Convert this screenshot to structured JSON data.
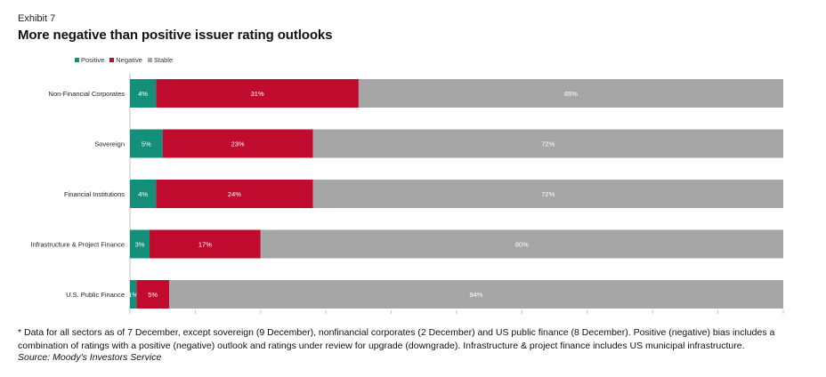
{
  "header": {
    "exhibit": "Exhibit 7",
    "title": "More negative than positive issuer rating outlooks"
  },
  "legend": {
    "items": [
      {
        "label": "Positive",
        "color": "#14907a"
      },
      {
        "label": "Negative",
        "color": "#c00a2e"
      },
      {
        "label": "Stable",
        "color": "#a6a6a6"
      }
    ]
  },
  "chart_data": {
    "type": "bar",
    "orientation": "horizontal",
    "stacked": true,
    "categories": [
      "Non-Financial Corporates",
      "Sovereign",
      "Financial Institutions",
      "Infrastructure & Project Finance",
      "U.S. Public Finance"
    ],
    "series": [
      {
        "name": "Positive",
        "color": "#14907a",
        "values": [
          4,
          5,
          4,
          3,
          1
        ],
        "labels": [
          "4%",
          "5%",
          "4%",
          "3%",
          "1%"
        ]
      },
      {
        "name": "Negative",
        "color": "#c00a2e",
        "values": [
          31,
          23,
          24,
          17,
          5
        ],
        "labels": [
          "31%",
          "23%",
          "24%",
          "17%",
          "5%"
        ]
      },
      {
        "name": "Stable",
        "color": "#a6a6a6",
        "values": [
          65,
          72,
          72,
          80,
          94
        ],
        "labels": [
          "65%",
          "72%",
          "72%",
          "80%",
          "94%"
        ]
      }
    ],
    "xlim": [
      0,
      100
    ],
    "legend_position": "top-left",
    "grid": false
  },
  "footer": {
    "note": "* Data for all sectors as of 7 December, except sovereign (9 December), nonfinancial corporates (2 December) and US public finance (8 December). Positive (negative) bias includes a combination of ratings with a positive (negative) outlook and ratings under review for upgrade (downgrade). Infrastructure & project finance includes US municipal infrastructure.",
    "source": "Source: Moody's Investors Service"
  }
}
